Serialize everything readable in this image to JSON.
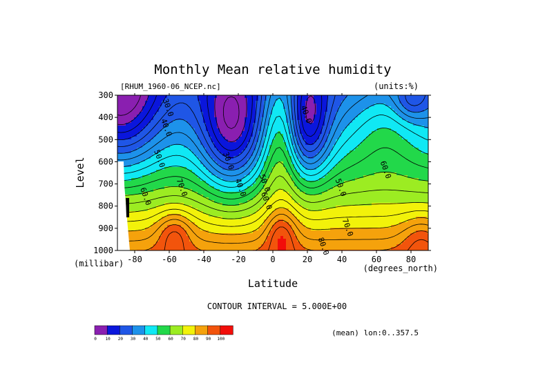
{
  "chart_data": {
    "type": "contour",
    "title": "Monthly Mean relative humidity",
    "dataset_label": "[RHUM_1960-06_NCEP.nc]",
    "units_label": "(units:%)",
    "xlabel": "Latitude",
    "ylabel": "Level",
    "x_units": "(degrees_north)",
    "y_units": "(millibar)",
    "xlim": [
      -90,
      90
    ],
    "ylim": [
      300,
      1000
    ],
    "y_inverted": true,
    "x_ticks": [
      -80,
      -60,
      -40,
      -20,
      0,
      20,
      40,
      60,
      80
    ],
    "y_ticks": [
      300,
      400,
      500,
      600,
      700,
      800,
      900,
      1000
    ],
    "contour_interval_text": "CONTOUR INTERVAL = 5.000E+00",
    "footer_text": "(mean) lon:0..357.5",
    "colorbar": {
      "levels": [
        0,
        10,
        20,
        30,
        40,
        50,
        60,
        70,
        80,
        90,
        100
      ],
      "colors": [
        "#8a1fb0",
        "#0a16dc",
        "#1f56e6",
        "#1d92ea",
        "#10e8f4",
        "#22d84a",
        "#9cec22",
        "#f2f20a",
        "#f5a20c",
        "#f2540c",
        "#f20e0a"
      ]
    },
    "contour_labels": [
      {
        "text": "30.0",
        "lat": -62,
        "lev": 360
      },
      {
        "text": "40.0",
        "lat": -63,
        "lev": 450
      },
      {
        "text": "50.0",
        "lat": -67,
        "lev": 590
      },
      {
        "text": "60.0",
        "lat": -75,
        "lev": 760
      },
      {
        "text": "70.0",
        "lat": -54,
        "lev": 720
      },
      {
        "text": "30.0",
        "lat": -27,
        "lev": 600
      },
      {
        "text": "40.0",
        "lat": -20,
        "lev": 720
      },
      {
        "text": "50.0",
        "lat": -6,
        "lev": 700
      },
      {
        "text": "60.0",
        "lat": -5,
        "lev": 780
      },
      {
        "text": "40.0",
        "lat": 18,
        "lev": 390
      },
      {
        "text": "50.0",
        "lat": 38,
        "lev": 720
      },
      {
        "text": "70.0",
        "lat": 42,
        "lev": 900
      },
      {
        "text": "60.0",
        "lat": 64,
        "lev": 640
      },
      {
        "text": "80.0",
        "lat": 28,
        "lev": 985
      }
    ],
    "grid": false
  }
}
